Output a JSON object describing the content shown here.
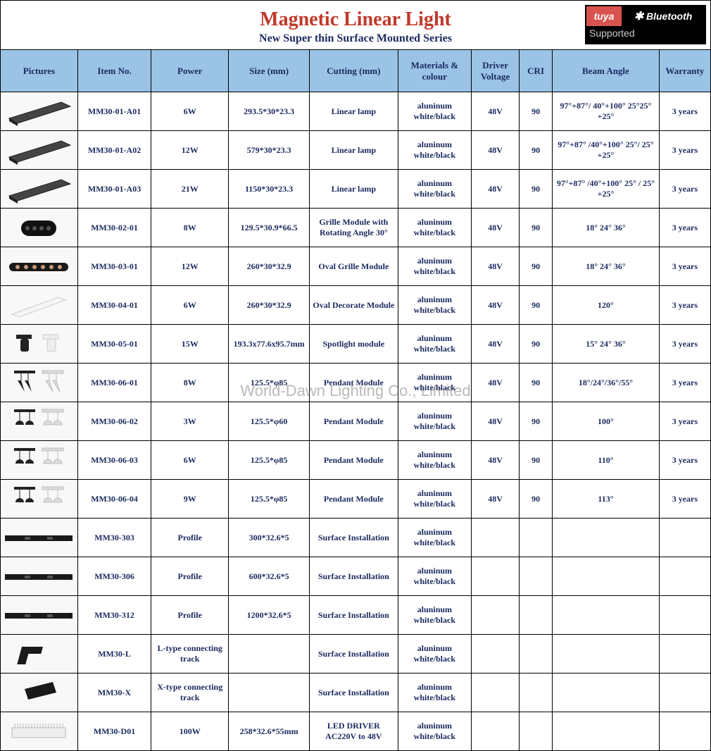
{
  "header": {
    "title": "Magnetic Linear Light",
    "subtitle": "New Super thin Surface Mounted Series",
    "badge_tuya": "tuya",
    "badge_bluetooth": "Bluetooth",
    "badge_supported": "Supported"
  },
  "watermark": "World-Dawn Lighting Co., Limited",
  "columns": [
    "Pictures",
    "Item No.",
    "Power",
    "Size (mm)",
    "Cutting (mm)",
    "Materials & colour",
    "Driver Voltage",
    "CRI",
    "Beam Angle",
    "Warranty"
  ],
  "rows": [
    {
      "icon": "linear-bar",
      "item": "MM30-01-A01",
      "power": "6W",
      "size": "293.5*30*23.3",
      "cutting": "Linear lamp",
      "mat": "aluninum white/black",
      "driver": "48V",
      "cri": "90",
      "beam": "97°+87°/ 40°+100° 25°25°+25°",
      "warranty": "3 years"
    },
    {
      "icon": "linear-bar",
      "item": "MM30-01-A02",
      "power": "12W",
      "size": "579*30*23.3",
      "cutting": "Linear lamp",
      "mat": "aluninum white/black",
      "driver": "48V",
      "cri": "90",
      "beam": "97°+87° /40°+100° 25°/ 25°+25°",
      "warranty": "3 years"
    },
    {
      "icon": "linear-bar",
      "item": "MM30-01-A03",
      "power": "21W",
      "size": "1150*30*23.3",
      "cutting": "Linear lamp",
      "mat": "aluninum white/black",
      "driver": "48V",
      "cri": "90",
      "beam": "97°+87° /40°+100° 25° / 25°+25°",
      "warranty": "3 years"
    },
    {
      "icon": "grille",
      "item": "MM30-02-01",
      "power": "8W",
      "size": "129.5*30.9*66.5",
      "cutting": "Grille Module with Rotating Angle 30°",
      "mat": "aluninum white/black",
      "driver": "48V",
      "cri": "90",
      "beam": "18° 24° 36°",
      "warranty": "3 years"
    },
    {
      "icon": "oval-grille",
      "item": "MM30-03-01",
      "power": "12W",
      "size": "260*30*32.9",
      "cutting": "Oval Grille Module",
      "mat": "aluninum white/black",
      "driver": "48V",
      "cri": "90",
      "beam": "18° 24° 36°",
      "warranty": "3 years"
    },
    {
      "icon": "oval-bar",
      "item": "MM30-04-01",
      "power": "6W",
      "size": "260*30*32.9",
      "cutting": "Oval Decorate Module",
      "mat": "aluninum white/black",
      "driver": "48V",
      "cri": "90",
      "beam": "120°",
      "warranty": "3 years"
    },
    {
      "icon": "spotlight",
      "item": "MM30-05-01",
      "power": "15W",
      "size": "193.3x77.6x95.7mm",
      "cutting": "Spotlight module",
      "mat": "aluninum white/black",
      "driver": "48V",
      "cri": "90",
      "beam": "15° 24° 36°",
      "warranty": "3 years"
    },
    {
      "icon": "pendant-cone",
      "item": "MM30-06-01",
      "power": "8W",
      "size": "125.5*φ85",
      "cutting": "Pendant Module",
      "mat": "aluninum white/black",
      "driver": "48V",
      "cri": "90",
      "beam": "18°/24°/36°/55°",
      "warranty": "3 years"
    },
    {
      "icon": "pendant-dome",
      "item": "MM30-06-02",
      "power": "3W",
      "size": "125.5*φ60",
      "cutting": "Pendant Module",
      "mat": "aluninum white/black",
      "driver": "48V",
      "cri": "90",
      "beam": "100°",
      "warranty": "3 years"
    },
    {
      "icon": "pendant-dome",
      "item": "MM30-06-03",
      "power": "6W",
      "size": "125.5*φ85",
      "cutting": "Pendant Module",
      "mat": "aluninum white/black",
      "driver": "48V",
      "cri": "90",
      "beam": "110°",
      "warranty": "3 years"
    },
    {
      "icon": "pendant-dome",
      "item": "MM30-06-04",
      "power": "9W",
      "size": "125.5*φ85",
      "cutting": "Pendant Module",
      "mat": "aluninum white/black",
      "driver": "48V",
      "cri": "90",
      "beam": "113°",
      "warranty": "3 years"
    },
    {
      "icon": "profile",
      "item": "MM30-303",
      "power": "Profile",
      "size": "300*32.6*5",
      "cutting": "Surface Installation",
      "mat": "aluninum white/black",
      "driver": "",
      "cri": "",
      "beam": "",
      "warranty": ""
    },
    {
      "icon": "profile",
      "item": "MM30-306",
      "power": "Profile",
      "size": "600*32.6*5",
      "cutting": "Surface Installation",
      "mat": "aluninum white/black",
      "driver": "",
      "cri": "",
      "beam": "",
      "warranty": ""
    },
    {
      "icon": "profile",
      "item": "MM30-312",
      "power": "Profile",
      "size": "1200*32.6*5",
      "cutting": "Surface Installation",
      "mat": "aluninum white/black",
      "driver": "",
      "cri": "",
      "beam": "",
      "warranty": ""
    },
    {
      "icon": "l-connector",
      "item": "MM30-L",
      "power": "L-type connecting track",
      "size": "",
      "cutting": "Surface Installation",
      "mat": "aluninum white/black",
      "driver": "",
      "cri": "",
      "beam": "",
      "warranty": ""
    },
    {
      "icon": "x-connector",
      "item": "MM30-X",
      "power": "X-type connecting track",
      "size": "",
      "cutting": "Surface Installation",
      "mat": "aluninum white/black",
      "driver": "",
      "cri": "",
      "beam": "",
      "warranty": ""
    },
    {
      "icon": "driver",
      "item": "MM30-D01",
      "power": "100W",
      "size": "258*32.6*55mm",
      "cutting": "LED DRIVER AC220V to 48V",
      "mat": "aluninum white/black",
      "driver": "",
      "cri": "",
      "beam": "",
      "warranty": ""
    }
  ]
}
